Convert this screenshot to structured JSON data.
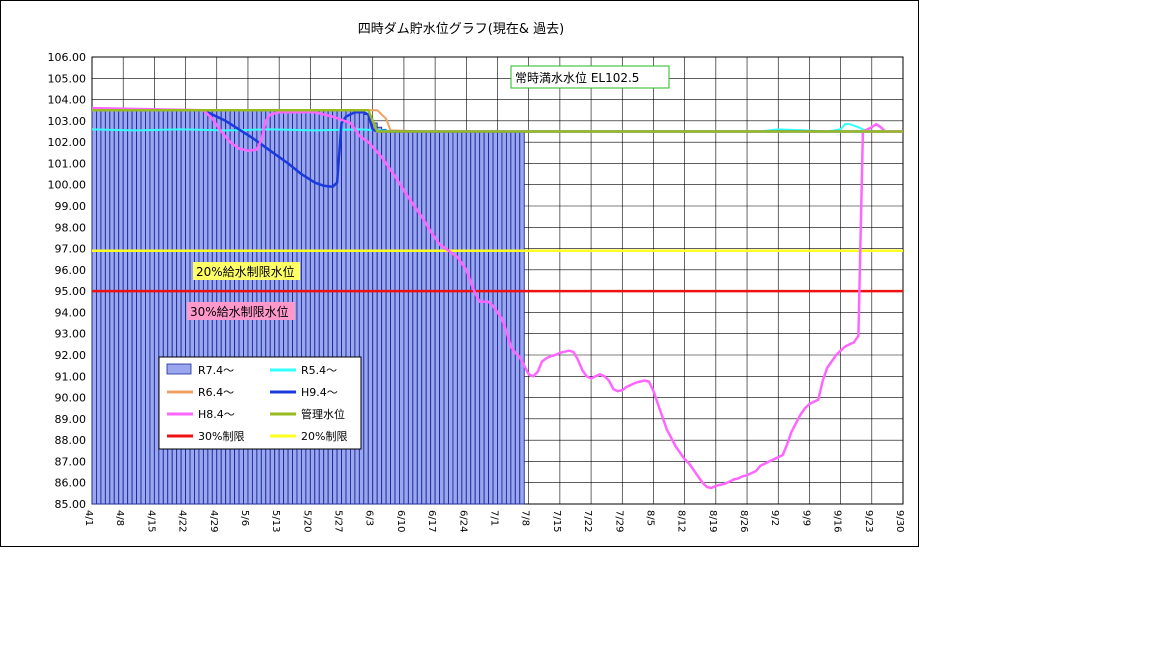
{
  "chart_data": {
    "type": "line",
    "title": "四時ダム貯水位グラフ(現在& 過去)",
    "ylim": [
      85,
      106
    ],
    "y_tick_labels": [
      "85.00",
      "86.00",
      "87.00",
      "88.00",
      "89.00",
      "90.00",
      "91.00",
      "92.00",
      "93.00",
      "94.00",
      "95.00",
      "96.00",
      "97.00",
      "98.00",
      "99.00",
      "100.00",
      "101.00",
      "102.00",
      "103.00",
      "104.00",
      "105.00",
      "106.00"
    ],
    "x_tick_labels": [
      "4/1",
      "4/8",
      "4/15",
      "4/22",
      "4/29",
      "5/6",
      "5/13",
      "5/20",
      "5/27",
      "6/3",
      "6/10",
      "6/17",
      "6/24",
      "7/1",
      "7/8",
      "7/15",
      "7/22",
      "7/29",
      "8/5",
      "8/12",
      "8/19",
      "8/26",
      "9/2",
      "9/9",
      "9/16",
      "9/23",
      "9/30"
    ],
    "x_day_range": [
      0,
      182
    ],
    "annotations": {
      "full_level": "常時満水水位 EL102.5",
      "limit20": "20%給水制限水位",
      "limit30": "30%給水制限水位"
    },
    "legend": [
      {
        "key": "r7",
        "label": "R7.4〜",
        "kind": "bar",
        "color": "#9aa7ee"
      },
      {
        "key": "r5",
        "label": "R5.4〜",
        "kind": "line",
        "color": "#33ffff"
      },
      {
        "key": "r6",
        "label": "R6.4〜",
        "kind": "line",
        "color": "#f0a060"
      },
      {
        "key": "h9",
        "label": "H9.4〜",
        "kind": "line",
        "color": "#1a3ae0"
      },
      {
        "key": "h8",
        "label": "H8.4〜",
        "kind": "line",
        "color": "#ff66ff"
      },
      {
        "key": "kanri",
        "label": "管理水位",
        "kind": "line",
        "color": "#99bb22"
      },
      {
        "key": "lim30",
        "label": "30%制限",
        "kind": "line",
        "color": "#ee1111"
      },
      {
        "key": "lim20",
        "label": "20%制限",
        "kind": "line",
        "color": "#ffff22"
      }
    ],
    "bars": {
      "name": "R7.4〜",
      "start_day": 0,
      "values": [
        103.5,
        103.5,
        103.5,
        103.5,
        103.5,
        103.5,
        103.5,
        103.5,
        103.5,
        103.5,
        103.5,
        103.5,
        103.5,
        103.5,
        103.5,
        103.5,
        103.5,
        103.5,
        103.5,
        103.5,
        103.5,
        103.5,
        103.5,
        103.5,
        103.5,
        103.5,
        103.5,
        103.5,
        103.5,
        103.5,
        103.5,
        103.5,
        103.5,
        103.5,
        103.5,
        103.5,
        103.5,
        103.5,
        103.5,
        103.5,
        103.5,
        103.5,
        103.5,
        103.5,
        103.5,
        103.5,
        103.5,
        103.5,
        103.5,
        103.5,
        103.5,
        103.5,
        103.5,
        103.5,
        103.5,
        103.5,
        103.5,
        103.5,
        103.5,
        103.5,
        103.4,
        103.3,
        103.1,
        102.9,
        102.7,
        102.6,
        102.5,
        102.5,
        102.5,
        102.5,
        102.5,
        102.5,
        102.5,
        102.5,
        102.5,
        102.5,
        102.5,
        102.5,
        102.5,
        102.5,
        102.5,
        102.5,
        102.5,
        102.5,
        102.5,
        102.5,
        102.5,
        102.5,
        102.5,
        102.5,
        102.5,
        102.5,
        102.5,
        102.5,
        102.5,
        102.5,
        102.5
      ]
    },
    "series": [
      {
        "key": "lim20",
        "name": "20%制限",
        "color": "#ffff22",
        "width": 2.5,
        "points": [
          [
            0,
            96.9
          ],
          [
            182,
            96.9
          ]
        ]
      },
      {
        "key": "lim30",
        "name": "30%制限",
        "color": "#ee1111",
        "width": 2.5,
        "points": [
          [
            0,
            95.0
          ],
          [
            182,
            95.0
          ]
        ]
      },
      {
        "key": "r5",
        "name": "R5.4〜",
        "color": "#33ffff",
        "width": 2,
        "points": [
          [
            0,
            102.6
          ],
          [
            10,
            102.55
          ],
          [
            20,
            102.6
          ],
          [
            30,
            102.55
          ],
          [
            40,
            102.6
          ],
          [
            50,
            102.55
          ],
          [
            60,
            102.6
          ],
          [
            70,
            102.5
          ],
          [
            100,
            102.5
          ],
          [
            150,
            102.5
          ],
          [
            154,
            102.6
          ],
          [
            160,
            102.55
          ],
          [
            165,
            102.5
          ],
          [
            168,
            102.6
          ],
          [
            169,
            102.85
          ],
          [
            170,
            102.85
          ],
          [
            172,
            102.7
          ],
          [
            174,
            102.5
          ],
          [
            180,
            102.5
          ],
          [
            182,
            102.5
          ]
        ]
      },
      {
        "key": "r6",
        "name": "R6.4〜",
        "color": "#f0a060",
        "width": 2,
        "points": [
          [
            0,
            103.5
          ],
          [
            60,
            103.5
          ],
          [
            64,
            103.5
          ],
          [
            66,
            103.1
          ],
          [
            67,
            102.55
          ],
          [
            75,
            102.5
          ],
          [
            182,
            102.5
          ]
        ]
      },
      {
        "key": "h9",
        "name": "H9.4〜",
        "color": "#1a3ae0",
        "width": 2.5,
        "points": [
          [
            0,
            103.5
          ],
          [
            25,
            103.5
          ],
          [
            27,
            103.3
          ],
          [
            30,
            103.0
          ],
          [
            33,
            102.6
          ],
          [
            36,
            102.2
          ],
          [
            40,
            101.6
          ],
          [
            44,
            101.0
          ],
          [
            47,
            100.5
          ],
          [
            50,
            100.1
          ],
          [
            52,
            99.95
          ],
          [
            54,
            99.9
          ],
          [
            55,
            100.1
          ],
          [
            56,
            102.9
          ],
          [
            57,
            103.2
          ],
          [
            59,
            103.4
          ],
          [
            61,
            103.4
          ],
          [
            62,
            103.3
          ],
          [
            63,
            102.6
          ],
          [
            64,
            102.5
          ],
          [
            182,
            102.5
          ]
        ]
      },
      {
        "key": "h8",
        "name": "H8.4〜",
        "color": "#ff66ff",
        "width": 2.5,
        "points": [
          [
            0,
            103.6
          ],
          [
            25,
            103.5
          ],
          [
            27,
            103.1
          ],
          [
            29,
            102.5
          ],
          [
            31,
            102.0
          ],
          [
            33,
            101.7
          ],
          [
            35,
            101.6
          ],
          [
            37,
            101.65
          ],
          [
            38,
            102.1
          ],
          [
            39,
            103.0
          ],
          [
            40,
            103.3
          ],
          [
            42,
            103.4
          ],
          [
            50,
            103.4
          ],
          [
            54,
            103.2
          ],
          [
            58,
            102.9
          ],
          [
            60,
            102.3
          ],
          [
            62,
            102.0
          ],
          [
            65,
            101.3
          ],
          [
            68,
            100.4
          ],
          [
            71,
            99.4
          ],
          [
            74,
            98.5
          ],
          [
            76,
            97.8
          ],
          [
            78,
            97.2
          ],
          [
            80,
            96.9
          ],
          [
            82,
            96.6
          ],
          [
            84,
            96.0
          ],
          [
            85,
            95.4
          ],
          [
            86,
            94.9
          ],
          [
            87,
            94.5
          ],
          [
            89,
            94.5
          ],
          [
            90,
            94.3
          ],
          [
            91,
            94.0
          ],
          [
            92,
            93.7
          ],
          [
            93,
            93.1
          ],
          [
            94,
            92.4
          ],
          [
            95,
            92.1
          ],
          [
            96,
            91.9
          ],
          [
            97,
            91.5
          ],
          [
            98,
            91.1
          ],
          [
            99,
            91.0
          ],
          [
            100,
            91.2
          ],
          [
            101,
            91.7
          ],
          [
            102,
            91.85
          ],
          [
            103,
            91.95
          ],
          [
            104,
            92.0
          ],
          [
            105,
            92.1
          ],
          [
            106,
            92.15
          ],
          [
            107,
            92.2
          ],
          [
            108,
            92.15
          ],
          [
            109,
            91.8
          ],
          [
            110,
            91.3
          ],
          [
            111,
            91.0
          ],
          [
            112,
            90.9
          ],
          [
            113,
            91.0
          ],
          [
            114,
            91.1
          ],
          [
            115,
            91.0
          ],
          [
            116,
            90.8
          ],
          [
            117,
            90.4
          ],
          [
            118,
            90.3
          ],
          [
            119,
            90.35
          ],
          [
            120,
            90.5
          ],
          [
            121,
            90.6
          ],
          [
            122,
            90.7
          ],
          [
            123,
            90.75
          ],
          [
            124,
            90.8
          ],
          [
            125,
            90.75
          ],
          [
            126,
            90.3
          ],
          [
            127,
            89.7
          ],
          [
            128,
            89.1
          ],
          [
            129,
            88.5
          ],
          [
            130,
            88.1
          ],
          [
            131,
            87.7
          ],
          [
            132,
            87.4
          ],
          [
            133,
            87.1
          ],
          [
            134,
            86.9
          ],
          [
            135,
            86.6
          ],
          [
            136,
            86.3
          ],
          [
            137,
            86.0
          ],
          [
            138,
            85.8
          ],
          [
            139,
            85.75
          ],
          [
            140,
            85.85
          ],
          [
            141,
            85.9
          ],
          [
            142,
            85.95
          ],
          [
            143,
            86.05
          ],
          [
            144,
            86.15
          ],
          [
            145,
            86.2
          ],
          [
            146,
            86.3
          ],
          [
            147,
            86.35
          ],
          [
            148,
            86.45
          ],
          [
            149,
            86.55
          ],
          [
            150,
            86.8
          ],
          [
            151,
            86.9
          ],
          [
            152,
            87.0
          ],
          [
            153,
            87.1
          ],
          [
            154,
            87.2
          ],
          [
            155,
            87.3
          ],
          [
            156,
            87.8
          ],
          [
            157,
            88.4
          ],
          [
            158,
            88.8
          ],
          [
            159,
            89.2
          ],
          [
            160,
            89.5
          ],
          [
            161,
            89.7
          ],
          [
            162,
            89.8
          ],
          [
            163,
            89.9
          ],
          [
            164,
            90.8
          ],
          [
            165,
            91.4
          ],
          [
            166,
            91.7
          ],
          [
            167,
            92.0
          ],
          [
            168,
            92.2
          ],
          [
            169,
            92.4
          ],
          [
            170,
            92.5
          ],
          [
            171,
            92.6
          ],
          [
            172,
            92.9
          ],
          [
            173,
            102.5
          ],
          [
            174,
            102.6
          ],
          [
            175,
            102.7
          ],
          [
            176,
            102.85
          ],
          [
            177,
            102.7
          ],
          [
            178,
            102.5
          ],
          [
            182,
            102.5
          ]
        ]
      },
      {
        "key": "kanri",
        "name": "管理水位",
        "color": "#99bb22",
        "width": 2.5,
        "points": [
          [
            0,
            103.5
          ],
          [
            62,
            103.5
          ],
          [
            63,
            103.0
          ],
          [
            64,
            102.5
          ],
          [
            182,
            102.5
          ]
        ]
      }
    ]
  }
}
